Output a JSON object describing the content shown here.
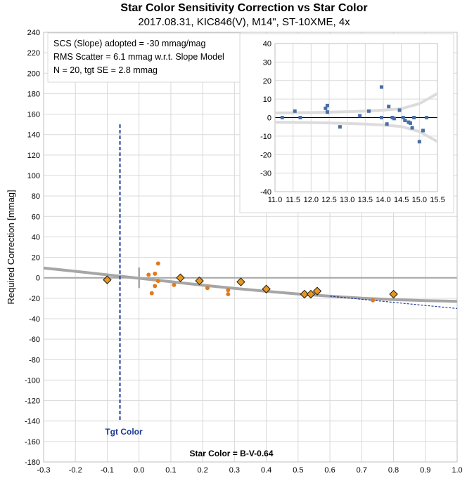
{
  "chart_data": [
    {
      "type": "scatter",
      "title": "Star Color Sensitivity Correction vs Star Color",
      "subtitle": "2017.08.31, KIC846(V), M14\", ST-10XME, 4x",
      "xlabel": "Star Color = B-V-0.64",
      "ylabel": "Required Correction [mmag]",
      "xlim": [
        -0.3,
        1.0
      ],
      "ylim": [
        -180,
        240
      ],
      "x_ticks": [
        "-0.3",
        "-0.2",
        "-0.1",
        "0.0",
        "0.1",
        "0.2",
        "0.3",
        "0.4",
        "0.5",
        "0.6",
        "0.7",
        "0.8",
        "0.9",
        "1.0"
      ],
      "y_ticks": [
        "240",
        "220",
        "200",
        "180",
        "160",
        "140",
        "120",
        "100",
        "80",
        "60",
        "40",
        "20",
        "0",
        "-20",
        "-40",
        "-60",
        "-80",
        "-100",
        "-120",
        "-140",
        "-160",
        "-180"
      ],
      "grid": true,
      "annotation_lines": [
        "SCS (Slope) adopted  =  -30 mmag/mag",
        "RMS Scatter = 6.1 mmag w.r.t. Slope Model",
        "N = 20,  tgt SE = 2.8 mmag"
      ],
      "target_label": "Tgt Color",
      "target_x": -0.06,
      "series": [
        {
          "marker": "diamond",
          "color": "#e8971e",
          "points": [
            [
              -0.1,
              -2
            ],
            [
              0.13,
              0
            ],
            [
              0.19,
              -3
            ],
            [
              0.32,
              -4
            ],
            [
              0.4,
              -11
            ],
            [
              0.52,
              -16
            ],
            [
              0.54,
              -16
            ],
            [
              0.56,
              -13
            ],
            [
              0.8,
              -16
            ]
          ]
        },
        {
          "marker": "dot",
          "color": "#e07a1f",
          "points": [
            [
              0.03,
              3
            ],
            [
              0.04,
              -15
            ],
            [
              0.05,
              4
            ],
            [
              0.05,
              -8
            ],
            [
              0.06,
              14
            ],
            [
              0.06,
              -3
            ],
            [
              0.11,
              -7
            ],
            [
              0.215,
              -10
            ],
            [
              0.28,
              -12
            ],
            [
              0.28,
              -16
            ],
            [
              0.735,
              -22
            ]
          ]
        },
        {
          "marker": "line",
          "color": "#a6a6a6",
          "points": [
            [
              -0.3,
              9.6
            ],
            [
              -0.2,
              6.3
            ],
            [
              -0.1,
              2.9
            ],
            [
              0.0,
              -0.5
            ],
            [
              0.1,
              -3.8
            ],
            [
              0.2,
              -7.2
            ],
            [
              0.3,
              -10.3
            ],
            [
              0.4,
              -13.2
            ],
            [
              0.5,
              -15.8
            ],
            [
              0.6,
              -18.0
            ],
            [
              0.7,
              -19.9
            ],
            [
              0.8,
              -21.3
            ],
            [
              0.9,
              -22.3
            ],
            [
              1.0,
              -23.0
            ]
          ]
        },
        {
          "marker": "dashed-line",
          "color": "#1f3a93",
          "points": [
            [
              0.6,
              -18.0
            ],
            [
              0.7,
              -21.0
            ],
            [
              0.8,
              -24.0
            ],
            [
              0.9,
              -27.0
            ],
            [
              1.0,
              -30.0
            ]
          ]
        }
      ]
    },
    {
      "type": "scatter",
      "xlim": [
        11.0,
        15.5
      ],
      "ylim": [
        -40,
        40
      ],
      "x_ticks": [
        "11.0",
        "11.5",
        "12.0",
        "12.5",
        "13.0",
        "13.5",
        "14.0",
        "14.5",
        "15.0",
        "15.5"
      ],
      "y_ticks": [
        "40",
        "30",
        "20",
        "10",
        "0",
        "-10",
        "-20",
        "-30",
        "-40"
      ],
      "grid": true,
      "series": [
        {
          "marker": "square",
          "color": "#4a6fa5",
          "points": [
            [
              11.2,
              0
            ],
            [
              11.55,
              3.5
            ],
            [
              11.7,
              0
            ],
            [
              12.4,
              5
            ],
            [
              12.45,
              6.5
            ],
            [
              12.45,
              3
            ],
            [
              12.8,
              -5
            ],
            [
              13.35,
              1
            ],
            [
              13.6,
              3.5
            ],
            [
              13.95,
              16.5
            ],
            [
              13.95,
              0
            ],
            [
              14.1,
              -3.5
            ],
            [
              14.15,
              6
            ],
            [
              14.25,
              0
            ],
            [
              14.3,
              -0.5
            ],
            [
              14.45,
              4
            ],
            [
              14.55,
              0
            ],
            [
              14.6,
              -1.5
            ],
            [
              14.7,
              -2.5
            ],
            [
              14.75,
              -3
            ],
            [
              14.8,
              -5.5
            ],
            [
              14.85,
              0
            ],
            [
              15.0,
              -13
            ],
            [
              15.1,
              -7
            ],
            [
              15.2,
              0
            ]
          ]
        },
        {
          "marker": "line",
          "color": "#dcdcdc",
          "points": [
            [
              11.0,
              2.5
            ],
            [
              11.5,
              2.6
            ],
            [
              12.0,
              2.7
            ],
            [
              12.5,
              2.9
            ],
            [
              13.0,
              3.2
            ],
            [
              13.5,
              3.5
            ],
            [
              14.0,
              4.0
            ],
            [
              14.5,
              4.8
            ],
            [
              15.0,
              7.5
            ],
            [
              15.5,
              13
            ]
          ]
        },
        {
          "marker": "line",
          "color": "#dcdcdc",
          "points": [
            [
              11.0,
              -2.5
            ],
            [
              11.5,
              -2.6
            ],
            [
              12.0,
              -2.7
            ],
            [
              12.5,
              -2.9
            ],
            [
              13.0,
              -3.2
            ],
            [
              13.5,
              -3.5
            ],
            [
              14.0,
              -4.0
            ],
            [
              14.5,
              -4.8
            ],
            [
              15.0,
              -7.5
            ],
            [
              15.5,
              -13
            ]
          ]
        }
      ]
    }
  ]
}
